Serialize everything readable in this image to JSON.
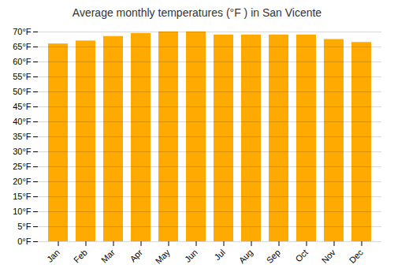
{
  "chart_data": {
    "type": "bar",
    "title": "Average monthly temperatures (°F ) in San Vicente",
    "categories": [
      "Jan",
      "Feb",
      "Mar",
      "Apr",
      "May",
      "Jun",
      "Jul",
      "Aug",
      "Sep",
      "Oct",
      "Nov",
      "Dec"
    ],
    "values": [
      66,
      67,
      68.5,
      69.5,
      70,
      70,
      69,
      69,
      69,
      69,
      67.5,
      66.5
    ],
    "color": "#FFAA00",
    "ylim": [
      0,
      70
    ],
    "yticks": [
      {
        "value": 0,
        "label": "0°F"
      },
      {
        "value": 5,
        "label": "5°F"
      },
      {
        "value": 10,
        "label": "10°F"
      },
      {
        "value": 15,
        "label": "15°F"
      },
      {
        "value": 20,
        "label": "20°F"
      },
      {
        "value": 25,
        "label": "25°F"
      },
      {
        "value": 30,
        "label": "30°F"
      },
      {
        "value": 35,
        "label": "35°F"
      },
      {
        "value": 40,
        "label": "40°F"
      },
      {
        "value": 45,
        "label": "45°F"
      },
      {
        "value": 50,
        "label": "50°F"
      },
      {
        "value": 55,
        "label": "55°F"
      },
      {
        "value": 60,
        "label": "60°F"
      },
      {
        "value": 65,
        "label": "65°F"
      },
      {
        "value": 70,
        "label": "70°F"
      }
    ],
    "grid": true
  }
}
